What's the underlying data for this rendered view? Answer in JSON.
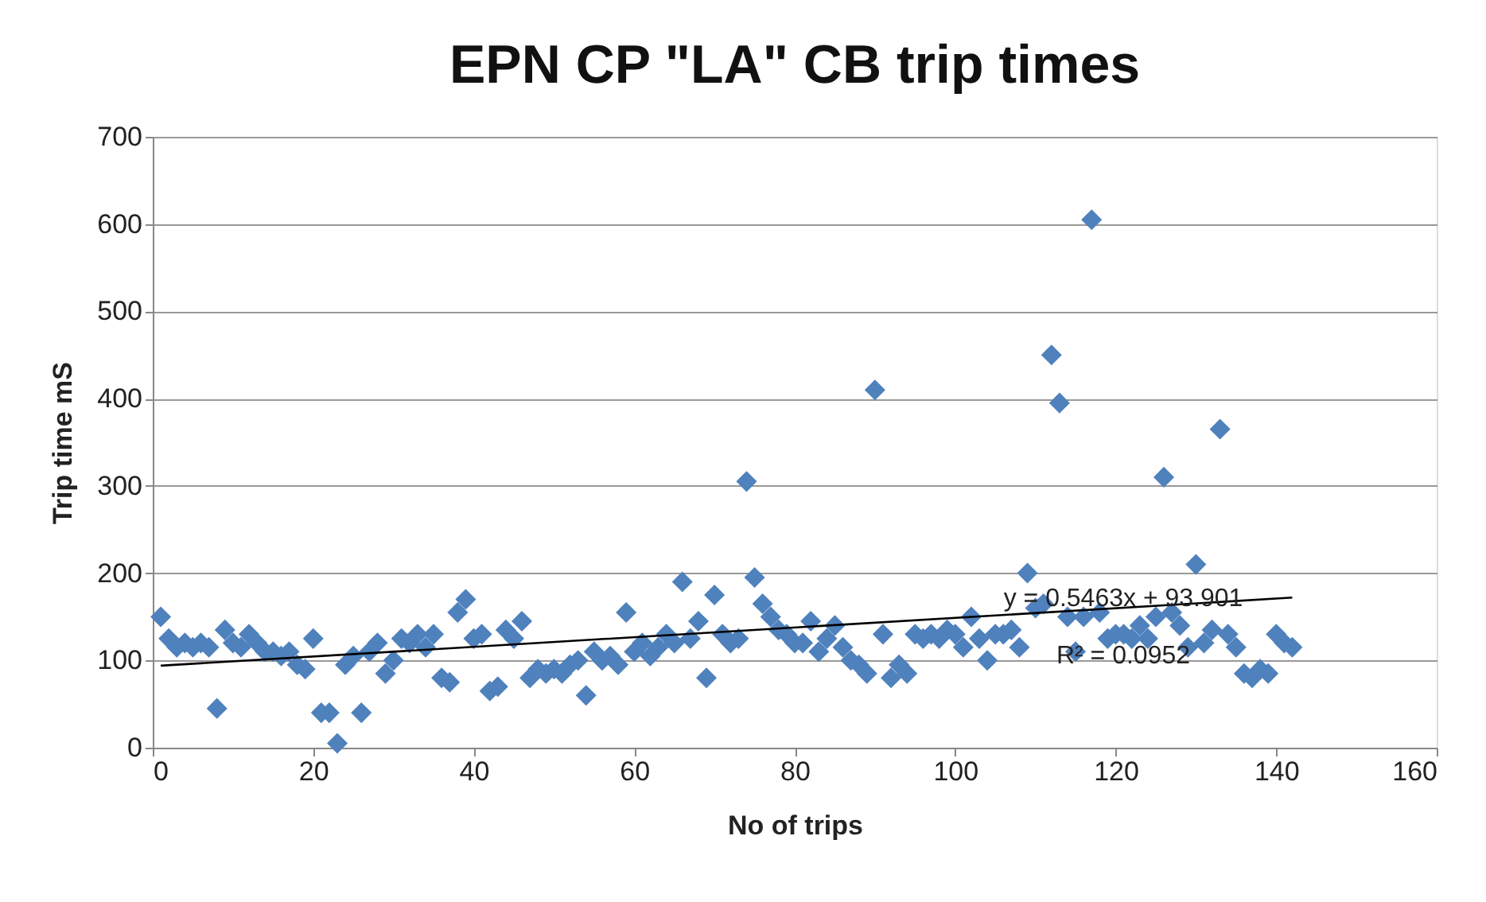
{
  "chart_data": {
    "type": "scatter",
    "title": "EPN CP \"LA\" CB trip times",
    "xlabel": "No of trips",
    "ylabel": "Trip time mS",
    "xlim": [
      0,
      160
    ],
    "xticks": [
      0,
      20,
      40,
      60,
      80,
      100,
      120,
      140,
      160
    ],
    "ylim": [
      0,
      700
    ],
    "yticks": [
      0,
      100,
      200,
      300,
      400,
      500,
      600,
      700
    ],
    "grid": "y",
    "marker": "diamond",
    "series": [
      {
        "color": "#4f81bd",
        "x": [
          1,
          2,
          3,
          4,
          5,
          6,
          7,
          8,
          9,
          10,
          11,
          12,
          13,
          14,
          15,
          16,
          17,
          18,
          19,
          20,
          21,
          22,
          23,
          24,
          25,
          26,
          27,
          28,
          29,
          30,
          31,
          32,
          33,
          34,
          35,
          36,
          37,
          38,
          39,
          40,
          41,
          42,
          43,
          44,
          45,
          46,
          47,
          48,
          49,
          50,
          51,
          52,
          53,
          54,
          55,
          56,
          57,
          58,
          59,
          60,
          61,
          62,
          63,
          64,
          65,
          66,
          67,
          68,
          69,
          70,
          71,
          72,
          73,
          74,
          75,
          76,
          77,
          78,
          79,
          80,
          81,
          82,
          83,
          84,
          85,
          86,
          87,
          88,
          89,
          90,
          91,
          92,
          93,
          94,
          95,
          96,
          97,
          98,
          99,
          100,
          101,
          102,
          103,
          104,
          105,
          106,
          107,
          108,
          109,
          110,
          111,
          112,
          113,
          114,
          115,
          116,
          117,
          118,
          119,
          120,
          121,
          122,
          123,
          124,
          125,
          126,
          127,
          128,
          129,
          130,
          131,
          132,
          133,
          134,
          135,
          136,
          137,
          138,
          139,
          140,
          141,
          142
        ],
        "values": [
          150,
          125,
          115,
          120,
          115,
          120,
          115,
          45,
          135,
          120,
          115,
          130,
          120,
          110,
          110,
          105,
          110,
          95,
          90,
          125,
          40,
          40,
          5,
          95,
          105,
          40,
          110,
          120,
          85,
          100,
          125,
          120,
          130,
          115,
          130,
          80,
          75,
          155,
          170,
          125,
          130,
          65,
          70,
          135,
          125,
          145,
          80,
          90,
          85,
          90,
          85,
          95,
          100,
          60,
          110,
          100,
          105,
          95,
          155,
          110,
          120,
          105,
          115,
          130,
          120,
          190,
          125,
          145,
          80,
          175,
          130,
          120,
          125,
          305,
          195,
          165,
          150,
          135,
          130,
          120,
          120,
          145,
          110,
          125,
          140,
          115,
          100,
          95,
          85,
          410,
          130,
          80,
          95,
          85,
          130,
          125,
          130,
          125,
          135,
          130,
          115,
          150,
          125,
          100,
          130,
          130,
          135,
          115,
          200,
          160,
          165,
          450,
          395,
          150,
          110,
          150,
          605,
          155,
          125,
          130,
          130,
          125,
          140,
          125,
          150,
          310,
          155,
          140,
          115,
          210,
          120,
          135,
          365,
          130,
          115,
          85,
          80,
          90,
          85,
          130,
          120,
          115
        ]
      },
      {
        "type": "line",
        "color": "#000000",
        "marker": "none",
        "x": [
          1,
          142
        ],
        "values": [
          94,
          172
        ]
      }
    ],
    "annotations": [
      "y = 0.5463x + 93.901",
      "R² = 0.0952"
    ]
  }
}
